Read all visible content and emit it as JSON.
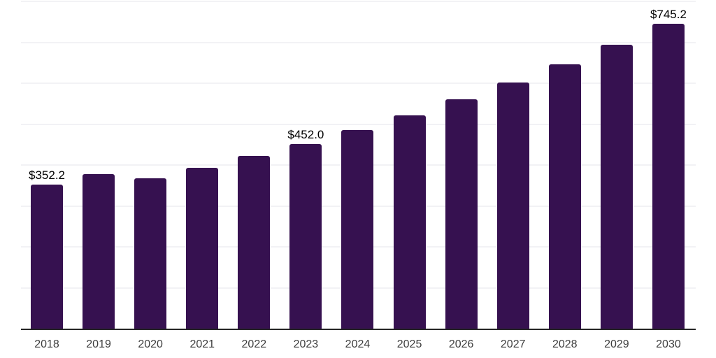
{
  "chart_data": {
    "type": "bar",
    "title": "",
    "xlabel": "",
    "ylabel": "",
    "categories": [
      "2018",
      "2019",
      "2020",
      "2021",
      "2022",
      "2023",
      "2024",
      "2025",
      "2026",
      "2027",
      "2028",
      "2029",
      "2030"
    ],
    "values": [
      352.2,
      377.9,
      367.2,
      393.1,
      421.5,
      452.0,
      485.4,
      521.3,
      559.9,
      601.3,
      645.8,
      693.6,
      745.2
    ],
    "labeled_points": [
      {
        "index": 0,
        "label": "$352.2"
      },
      {
        "index": 5,
        "label": "$452.0"
      },
      {
        "index": 12,
        "label": "$745.2"
      }
    ],
    "currency_prefix": "$",
    "ylim": [
      0,
      800
    ],
    "gridline_step": 100,
    "grid": true,
    "legend_position": "none",
    "y_tick_labels_visible": false
  },
  "colors": {
    "bar": "#361150",
    "grid": "#f2f2f5",
    "axis": "#262626",
    "tick_label": "#3d3d3d",
    "data_label": "#000000",
    "background": "#ffffff"
  }
}
